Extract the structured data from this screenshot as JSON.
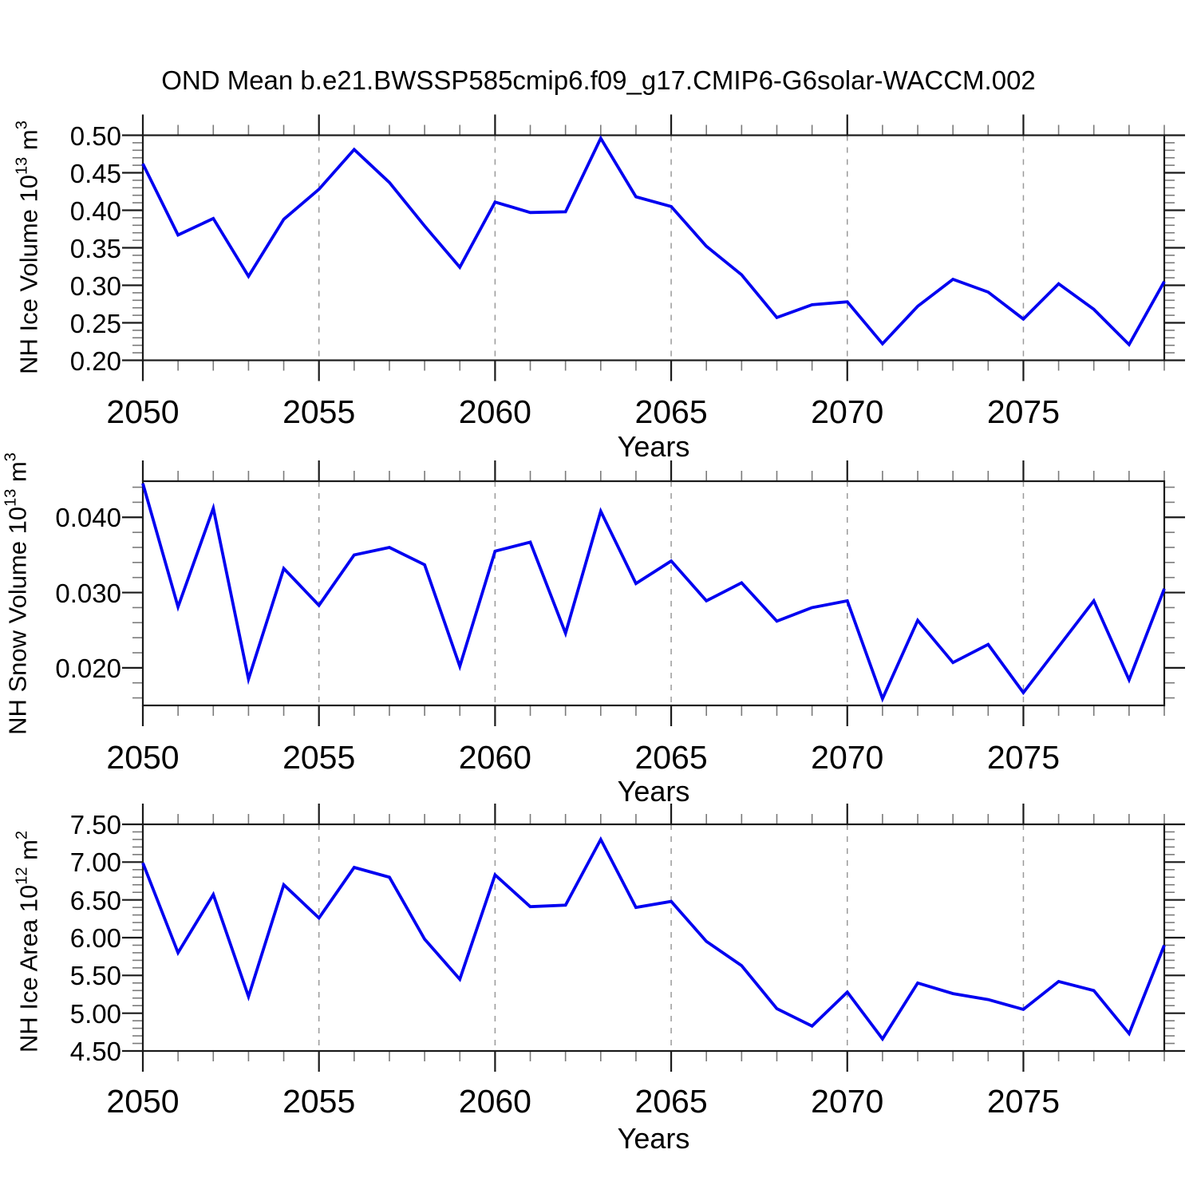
{
  "page": {
    "title": "OND Mean b.e21.BWSSP585cmip6.f09_g17.CMIP6-G6solar-WACCM.002"
  },
  "style": {
    "line_color": "#0000f0",
    "axis_color": "#1a1a1a",
    "minor_tick_color": "#7a7a7a",
    "grid_color": "#9a9a9a",
    "text_color": "#000000",
    "background": "#ffffff"
  },
  "chart_data": [
    {
      "id": "ice-volume",
      "type": "line",
      "ylabel": "NH Ice Volume 10^13 m^3",
      "ylabel_parts": [
        {
          "text": "NH Ice Volume 10"
        },
        {
          "text": "13",
          "sup": true
        },
        {
          "text": " m"
        },
        {
          "text": "3",
          "sup": true
        }
      ],
      "xlabel": "Years",
      "x": [
        2050,
        2051,
        2052,
        2053,
        2054,
        2055,
        2056,
        2057,
        2058,
        2059,
        2060,
        2061,
        2062,
        2063,
        2064,
        2065,
        2066,
        2067,
        2068,
        2069,
        2070,
        2071,
        2072,
        2073,
        2074,
        2075,
        2076,
        2077,
        2078,
        2079
      ],
      "values": [
        0.462,
        0.367,
        0.389,
        0.312,
        0.388,
        0.428,
        0.481,
        0.437,
        0.379,
        0.324,
        0.411,
        0.397,
        0.398,
        0.496,
        0.418,
        0.405,
        0.352,
        0.314,
        0.257,
        0.274,
        0.278,
        0.222,
        0.272,
        0.308,
        0.291,
        0.255,
        0.302,
        0.268,
        0.221,
        0.305
      ],
      "xlim": [
        2050,
        2079
      ],
      "ylim": [
        0.2,
        0.5
      ],
      "y_major_ticks": [
        0.2,
        0.25,
        0.3,
        0.35,
        0.4,
        0.45,
        0.5
      ],
      "y_major_labels": [
        "0.20",
        "0.25",
        "0.30",
        "0.35",
        "0.40",
        "0.45",
        "0.50"
      ],
      "y_minor_step": 0.01,
      "x_major_ticks": [
        2050,
        2055,
        2060,
        2065,
        2070,
        2075
      ],
      "x_major_labels": [
        "2050",
        "2055",
        "2060",
        "2065",
        "2070",
        "2075"
      ],
      "x_minor_step": 1,
      "gridline_x": [
        2055,
        2060,
        2065,
        2070,
        2075
      ],
      "grid": "vertical-dashed"
    },
    {
      "id": "snow-volume",
      "type": "line",
      "ylabel": "NH Snow Volume 10^13 m^3",
      "ylabel_parts": [
        {
          "text": "NH Snow Volume 10"
        },
        {
          "text": "13",
          "sup": true
        },
        {
          "text": " m"
        },
        {
          "text": "3",
          "sup": true
        }
      ],
      "xlabel": "Years",
      "x": [
        2050,
        2051,
        2052,
        2053,
        2054,
        2055,
        2056,
        2057,
        2058,
        2059,
        2060,
        2061,
        2062,
        2063,
        2064,
        2065,
        2066,
        2067,
        2068,
        2069,
        2070,
        2071,
        2072,
        2073,
        2074,
        2075,
        2076,
        2077,
        2078,
        2079
      ],
      "values": [
        0.0445,
        0.0281,
        0.0412,
        0.0185,
        0.0332,
        0.0283,
        0.035,
        0.036,
        0.0337,
        0.0202,
        0.0355,
        0.0367,
        0.0246,
        0.0408,
        0.0312,
        0.0342,
        0.0289,
        0.0313,
        0.0262,
        0.028,
        0.0289,
        0.0159,
        0.0263,
        0.0207,
        0.0231,
        0.0167,
        0.0228,
        0.0289,
        0.0184,
        0.0305
      ],
      "xlim": [
        2050,
        2079
      ],
      "ylim": [
        0.015,
        0.0448
      ],
      "y_major_ticks": [
        0.02,
        0.03,
        0.04
      ],
      "y_major_labels": [
        "0.020",
        "0.030",
        "0.040"
      ],
      "y_minor_step": 0.002,
      "x_major_ticks": [
        2050,
        2055,
        2060,
        2065,
        2070,
        2075
      ],
      "x_major_labels": [
        "2050",
        "2055",
        "2060",
        "2065",
        "2070",
        "2075"
      ],
      "x_minor_step": 1,
      "gridline_x": [
        2055,
        2060,
        2065,
        2070,
        2075
      ],
      "grid": "vertical-dashed"
    },
    {
      "id": "ice-area",
      "type": "line",
      "ylabel": "NH Ice Area 10^12 m^2",
      "ylabel_parts": [
        {
          "text": "NH Ice Area 10"
        },
        {
          "text": "12",
          "sup": true
        },
        {
          "text": " m"
        },
        {
          "text": "2",
          "sup": true
        }
      ],
      "xlabel": "Years",
      "x": [
        2050,
        2051,
        2052,
        2053,
        2054,
        2055,
        2056,
        2057,
        2058,
        2059,
        2060,
        2061,
        2062,
        2063,
        2064,
        2065,
        2066,
        2067,
        2068,
        2069,
        2070,
        2071,
        2072,
        2073,
        2074,
        2075,
        2076,
        2077,
        2078,
        2079
      ],
      "values": [
        6.99,
        5.8,
        6.57,
        5.22,
        6.7,
        6.26,
        6.93,
        6.8,
        5.98,
        5.45,
        6.83,
        6.41,
        6.43,
        7.3,
        6.4,
        6.48,
        5.95,
        5.63,
        5.06,
        4.83,
        5.28,
        4.66,
        5.4,
        5.26,
        5.18,
        5.05,
        5.42,
        5.3,
        4.73,
        5.9
      ],
      "xlim": [
        2050,
        2079
      ],
      "ylim": [
        4.5,
        7.5
      ],
      "y_major_ticks": [
        4.5,
        5.0,
        5.5,
        6.0,
        6.5,
        7.0,
        7.5
      ],
      "y_major_labels": [
        "4.50",
        "5.00",
        "5.50",
        "6.00",
        "6.50",
        "7.00",
        "7.50"
      ],
      "y_minor_step": 0.1,
      "x_major_ticks": [
        2050,
        2055,
        2060,
        2065,
        2070,
        2075
      ],
      "x_major_labels": [
        "2050",
        "2055",
        "2060",
        "2065",
        "2070",
        "2075"
      ],
      "x_minor_step": 1,
      "gridline_x": [
        2055,
        2060,
        2065,
        2070,
        2075
      ],
      "grid": "vertical-dashed"
    }
  ]
}
